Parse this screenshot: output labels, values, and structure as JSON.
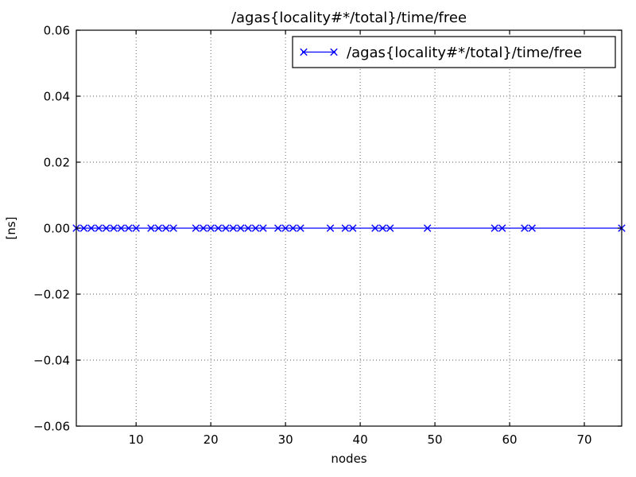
{
  "figure": {
    "title": "/agas{locality#*/total}/time/free",
    "xlabel": "nodes",
    "ylabel": "[ns]",
    "legend": {
      "label": "/agas{locality#*/total}/time/free",
      "position": "upper right"
    },
    "colors": {
      "series": "#0000ff",
      "axes": "#000000",
      "grid": "#555555",
      "background": "#ffffff",
      "legend_background": "#ffffff",
      "legend_border": "#000000"
    }
  },
  "chart_data": {
    "type": "line",
    "title": "/agas{locality#*/total}/time/free",
    "xlabel": "nodes",
    "ylabel": "[ns]",
    "xlim": [
      2,
      75
    ],
    "ylim": [
      -0.06,
      0.06
    ],
    "xticks": [
      10,
      20,
      30,
      40,
      50,
      60,
      70
    ],
    "yticks": [
      -0.06,
      -0.04,
      -0.02,
      0.0,
      0.02,
      0.04,
      0.06
    ],
    "ytick_labels": [
      "−0.06",
      "−0.04",
      "−0.02",
      "0.00",
      "0.02",
      "0.04",
      "0.06"
    ],
    "grid": true,
    "grid_style": "dotted",
    "legend_position": "upper right",
    "marker": "x",
    "series": [
      {
        "name": "/agas{locality#*/total}/time/free",
        "color": "#0000ff",
        "x": [
          2,
          3,
          4,
          5,
          6,
          7,
          8,
          9,
          10,
          12,
          13,
          14,
          15,
          18,
          19,
          20,
          21,
          22,
          23,
          24,
          25,
          26,
          27,
          29,
          30,
          31,
          32,
          36,
          38,
          39,
          42,
          43,
          44,
          49,
          58,
          59,
          62,
          63,
          75
        ],
        "y": [
          0,
          0,
          0,
          0,
          0,
          0,
          0,
          0,
          0,
          0,
          0,
          0,
          0,
          0,
          0,
          0,
          0,
          0,
          0,
          0,
          0,
          0,
          0,
          0,
          0,
          0,
          0,
          0,
          0,
          0,
          0,
          0,
          0,
          0,
          0,
          0,
          0,
          0,
          0
        ]
      }
    ]
  }
}
